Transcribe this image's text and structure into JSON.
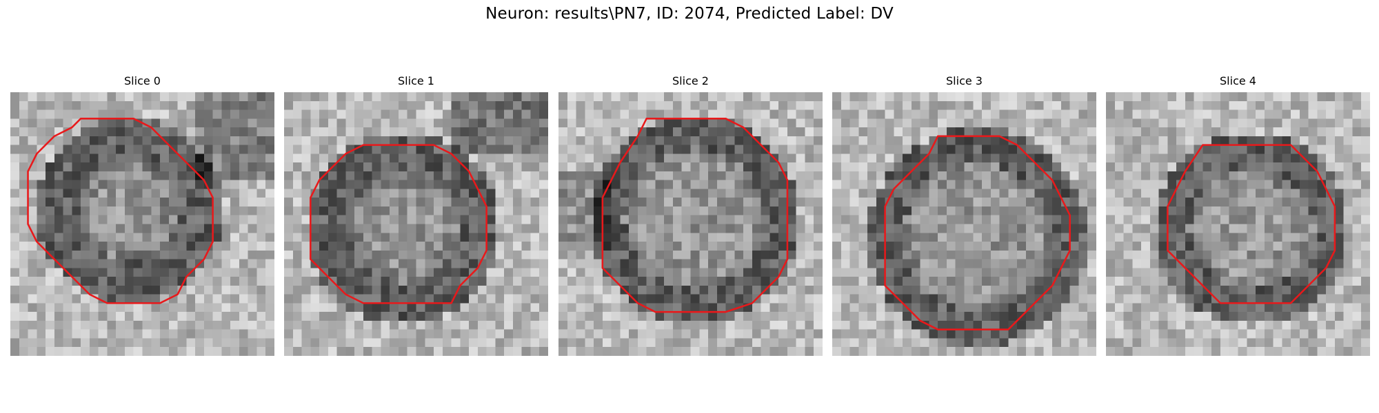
{
  "figure": {
    "title": "Neuron: results\\PN7, ID: 2074, Predicted Label: DV"
  },
  "panels": [
    {
      "title": "Slice 0",
      "outline_color": "#e8191b"
    },
    {
      "title": "Slice 1",
      "outline_color": "#e8191b"
    },
    {
      "title": "Slice 2",
      "outline_color": "#e8191b"
    },
    {
      "title": "Slice 3",
      "outline_color": "#e8191b"
    },
    {
      "title": "Slice 4",
      "outline_color": "#e8191b"
    }
  ]
}
